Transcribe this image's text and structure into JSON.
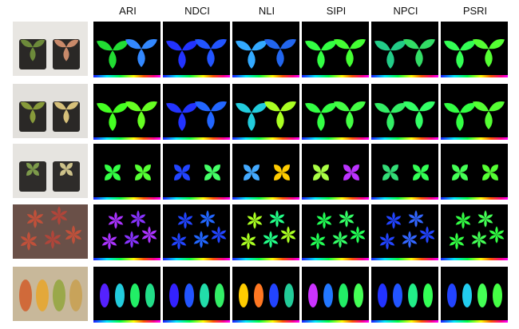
{
  "columns": [
    {
      "label": "ARI"
    },
    {
      "label": "NDCI"
    },
    {
      "label": "NLI"
    },
    {
      "label": "SIPI"
    },
    {
      "label": "NPCI"
    },
    {
      "label": "PSRI"
    }
  ],
  "rows": [
    {
      "shape": "trifoliate-potted",
      "photo_bg": "#e8e6e2",
      "pot": "#2a2826",
      "photo_leaves": [
        "#6d8a3a",
        "#c98a6a"
      ],
      "tiles": [
        [
          "#22dd33",
          "#3388ff"
        ],
        [
          "#2233ff",
          "#2255ff"
        ],
        [
          "#33aaff",
          "#2266ee"
        ],
        [
          "#33ff44",
          "#44ff33"
        ],
        [
          "#22cc88",
          "#33dd66"
        ],
        [
          "#33ff55",
          "#55ff33"
        ]
      ]
    },
    {
      "shape": "trifoliate-potted",
      "photo_bg": "#e2e0dc",
      "pot": "#2a2826",
      "photo_leaves": [
        "#879a3a",
        "#d6c07a"
      ],
      "tiles": [
        [
          "#44ff22",
          "#66ff22"
        ],
        [
          "#2233ff",
          "#2266ff"
        ],
        [
          "#22ccdd",
          "#aaff22"
        ],
        [
          "#33ff44",
          "#44ff44"
        ],
        [
          "#33ee66",
          "#33ff66"
        ],
        [
          "#33ff44",
          "#55ff33"
        ]
      ]
    },
    {
      "shape": "four-leaf-potted",
      "photo_bg": "#e6e4e0",
      "pot": "#2e2c2a",
      "photo_leaves": [
        "#7d9a4a",
        "#cdc28a"
      ],
      "tiles": [
        [
          "#33ff44",
          "#55ff33"
        ],
        [
          "#2244ff",
          "#44ff66"
        ],
        [
          "#44aaff",
          "#ffcc00"
        ],
        [
          "#aaff44",
          "#bb33ff"
        ],
        [
          "#33dd77",
          "#33ff55"
        ],
        [
          "#44ff55",
          "#55ff33"
        ]
      ]
    },
    {
      "shape": "maple-scatter",
      "photo_bg": "#6a5048",
      "pot": "none",
      "photo_leaves": [
        "#c0503a",
        "#b0453a"
      ],
      "tiles": [
        [
          "#aa33ff",
          "#8833ff"
        ],
        [
          "#2244ff",
          "#2266ff"
        ],
        [
          "#aaff22",
          "#22ff88"
        ],
        [
          "#22ff55",
          "#33ff66"
        ],
        [
          "#2244ff",
          "#3366ff"
        ],
        [
          "#33ff44",
          "#44ff55"
        ]
      ]
    },
    {
      "shape": "elongated-row",
      "photo_bg": "#c8b89a",
      "pot": "none",
      "photo_leaves": [
        "#d06a3a",
        "#e3a83a",
        "#9aa84a",
        "#c8a35a"
      ],
      "tiles": [
        [
          "#5522ff",
          "#22ccdd",
          "#22ee66",
          "#22dd88"
        ],
        [
          "#3322ff",
          "#2255ff",
          "#22ddaa",
          "#33ee66"
        ],
        [
          "#ffcc00",
          "#ff7722",
          "#2244ff",
          "#22cc99"
        ],
        [
          "#cc33ff",
          "#2277ff",
          "#22ee66",
          "#44ff55"
        ],
        [
          "#2233ff",
          "#2255ff",
          "#22ee88",
          "#33ff55"
        ],
        [
          "#2244ff",
          "#22ccee",
          "#44ff55",
          "#44ff44"
        ]
      ]
    }
  ]
}
